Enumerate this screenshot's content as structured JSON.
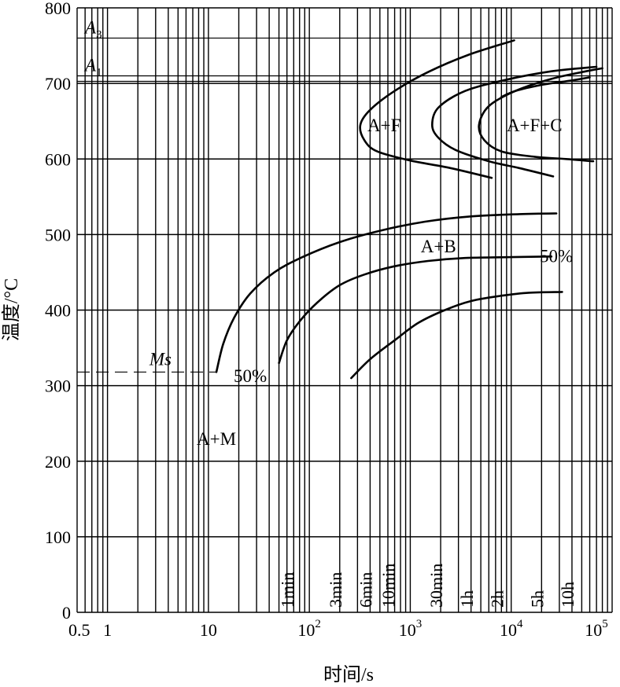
{
  "chart_data": {
    "type": "line",
    "title": "",
    "xlabel": "时间/s",
    "ylabel": "温度/°C",
    "x_scale": "log",
    "xlim": [
      0.5,
      100000
    ],
    "ylim": [
      0,
      800
    ],
    "grid": true,
    "y_ticks": [
      "0",
      "100",
      "200",
      "300",
      "400",
      "500",
      "600",
      "700",
      "800"
    ],
    "x_ticks": [
      {
        "value": 0.5,
        "label": "0.5"
      },
      {
        "value": 1,
        "label": "1"
      },
      {
        "value": 10,
        "label": "10"
      },
      {
        "value": 100,
        "label": "10",
        "exp": "2"
      },
      {
        "value": 1000,
        "label": "10",
        "exp": "3"
      },
      {
        "value": 10000,
        "label": "10",
        "exp": "4"
      },
      {
        "value": 100000,
        "label": "10",
        "exp": "5"
      }
    ],
    "reference_lines": [
      {
        "name": "A3",
        "base": "A",
        "sub": "3",
        "y": 760
      },
      {
        "name": "A1",
        "base": "A",
        "sub": "1",
        "y": 710
      },
      {
        "name": "Ms",
        "y": 318
      }
    ],
    "time_marks": [
      {
        "label": "1min",
        "x": 60
      },
      {
        "label": "3min",
        "x": 180
      },
      {
        "label": "6min",
        "x": 360
      },
      {
        "label": "10min",
        "x": 600
      },
      {
        "label": "30min",
        "x": 1800
      },
      {
        "label": "1h",
        "x": 3600
      },
      {
        "label": "2h",
        "x": 7200
      },
      {
        "label": "5h",
        "x": 18000
      },
      {
        "label": "10h",
        "x": 36000
      }
    ],
    "regions": [
      {
        "label": "A+F",
        "x": 550,
        "y": 645
      },
      {
        "label": "A+F+C",
        "x": 17000,
        "y": 645
      },
      {
        "label": "A+B",
        "x": 1900,
        "y": 485
      },
      {
        "label": "A+M",
        "x": 12,
        "y": 230
      }
    ],
    "annotations": [
      {
        "label": "50%",
        "x": 28000,
        "y": 472
      },
      {
        "label": "50%",
        "x": 26,
        "y": 313
      }
    ],
    "series": [
      {
        "x": [
          10700,
          3800,
          1500,
          700,
          400,
          320,
          350,
          470,
          1000,
          2500,
          6400
        ],
        "y": [
          757,
          738,
          715,
          690,
          665,
          645,
          625,
          610,
          598,
          588,
          575
        ]
      },
      {
        "x": [
          70000,
          25000,
          9000,
          3500,
          1900,
          1650,
          1900,
          2800,
          6000,
          12000,
          26000
        ],
        "y": [
          722,
          716,
          705,
          690,
          668,
          645,
          628,
          612,
          597,
          588,
          577
        ]
      },
      {
        "x": [
          80000,
          55000,
          25000,
          11000,
          6000,
          4800,
          5400,
          8000,
          17000,
          35000,
          65000
        ],
        "y": [
          720,
          716,
          706,
          690,
          670,
          645,
          625,
          610,
          603,
          600,
          597
        ]
      },
      {
        "x": [
          60000,
          40000,
          20000,
          11000,
          8000
        ],
        "y": [
          708,
          704,
          698,
          690,
          682
        ]
      },
      {
        "x": [
          12,
          14,
          18,
          26,
          45,
          85,
          200,
          500,
          1400,
          4000,
          12000,
          28000
        ],
        "y": [
          318,
          355,
          390,
          422,
          450,
          470,
          490,
          505,
          517,
          524,
          527,
          528
        ]
      },
      {
        "x": [
          50,
          60,
          80,
          120,
          200,
          350,
          700,
          1500,
          3500,
          9000,
          25000
        ],
        "y": [
          330,
          360,
          385,
          410,
          433,
          447,
          458,
          465,
          469,
          470,
          471
        ]
      },
      {
        "x": [
          260,
          400,
          700,
          1200,
          2200,
          4000,
          8000,
          15000,
          32000
        ],
        "y": [
          310,
          335,
          360,
          383,
          400,
          412,
          419,
          423,
          424
        ]
      }
    ]
  }
}
